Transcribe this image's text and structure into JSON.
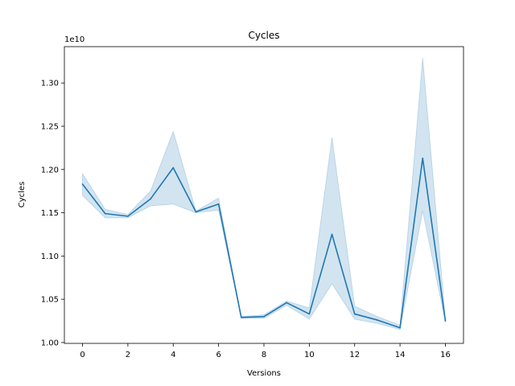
{
  "chart_data": {
    "type": "line",
    "title": "Cycles",
    "xlabel": "Versions",
    "ylabel": "Cycles",
    "y_offset_label": "1e10",
    "xlim": [
      -0.8,
      16.8
    ],
    "ylim": [
      0.999,
      1.342
    ],
    "x_ticks": [
      0,
      2,
      4,
      6,
      8,
      10,
      12,
      14,
      16
    ],
    "x_tick_labels": [
      "0",
      "2",
      "4",
      "6",
      "8",
      "10",
      "12",
      "14",
      "16"
    ],
    "y_ticks": [
      1.0,
      1.05,
      1.1,
      1.15,
      1.2,
      1.25,
      1.3
    ],
    "y_tick_labels": [
      "1.00",
      "1.05",
      "1.10",
      "1.15",
      "1.20",
      "1.25",
      "1.30"
    ],
    "grid": false,
    "line_color": "#1f77b4",
    "band_color": "#1f77b4",
    "series": [
      {
        "x": [
          0,
          1,
          2,
          3,
          4,
          5,
          6,
          7,
          8,
          9,
          10,
          11,
          12,
          13,
          14,
          15,
          16
        ],
        "values": [
          1.183,
          1.149,
          1.146,
          1.166,
          1.202,
          1.151,
          1.16,
          1.029,
          1.03,
          1.046,
          1.033,
          1.125,
          1.033,
          1.026,
          1.017,
          1.213,
          1.025
        ],
        "lower": [
          1.17,
          1.144,
          1.144,
          1.158,
          1.16,
          1.15,
          1.153,
          1.028,
          1.028,
          1.043,
          1.027,
          1.068,
          1.027,
          1.022,
          1.015,
          1.152,
          1.024
        ],
        "upper": [
          1.195,
          1.154,
          1.148,
          1.175,
          1.244,
          1.152,
          1.167,
          1.03,
          1.032,
          1.048,
          1.04,
          1.237,
          1.042,
          1.03,
          1.02,
          1.329,
          1.027
        ]
      }
    ]
  }
}
